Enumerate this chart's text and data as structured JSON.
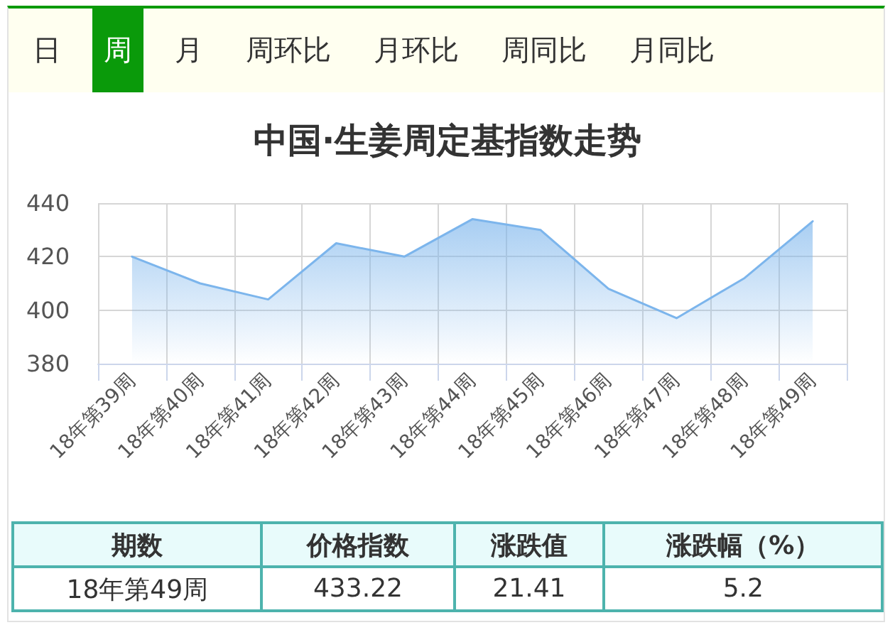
{
  "chart_data": {
    "type": "area",
    "title": "中国·生姜周定基指数走势",
    "categories": [
      "18年第39周",
      "18年第40周",
      "18年第41周",
      "18年第42周",
      "18年第43周",
      "18年第44周",
      "18年第45周",
      "18年第46周",
      "18年第47周",
      "18年第48周",
      "18年第49周"
    ],
    "series": [
      {
        "color": "#7cb5ec",
        "values": [
          420,
          410,
          404,
          425,
          420,
          434,
          430,
          408,
          397,
          412,
          433.22
        ]
      }
    ],
    "ylim": [
      380,
      440
    ],
    "yticks": [
      380,
      400,
      420,
      440
    ],
    "grid": true,
    "marker": "none",
    "annotations": [
      "日",
      "周",
      "月",
      "周环比",
      "月环比",
      "周同比",
      "月同比",
      "期数",
      "价格指数",
      "涨跌值",
      "涨跌幅（%）",
      "18年第49周",
      "433.22",
      "21.41",
      "5.2"
    ]
  }
}
